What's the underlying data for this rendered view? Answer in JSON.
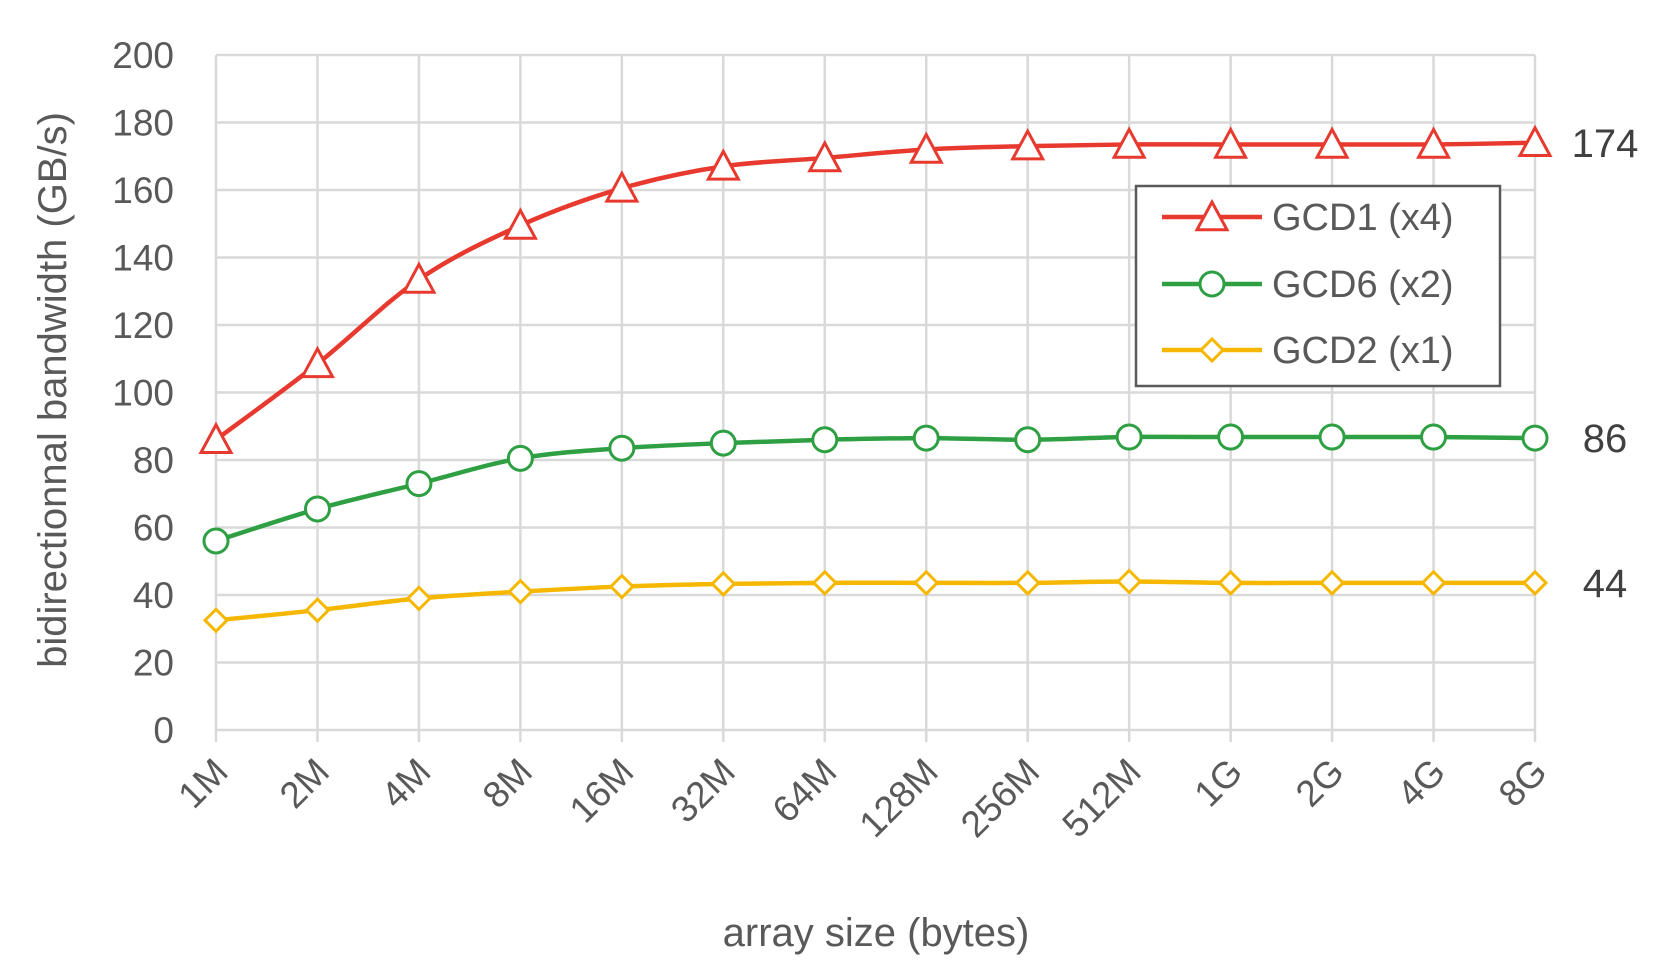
{
  "chart_data": {
    "type": "line",
    "title": "",
    "xlabel": "array size (bytes)",
    "ylabel": "bidirectionnal bandwidth (GB/s)",
    "ylim": [
      0,
      200
    ],
    "yticks": [
      0,
      20,
      40,
      60,
      80,
      100,
      120,
      140,
      160,
      180,
      200
    ],
    "grid": true,
    "legend_position": "top-right",
    "categories": [
      "1M",
      "2M",
      "4M",
      "8M",
      "16M",
      "32M",
      "64M",
      "128M",
      "256M",
      "512M",
      "1G",
      "2G",
      "4G",
      "8G"
    ],
    "series": [
      {
        "name": "GCD1 (x4)",
        "color": "#e8392f",
        "marker": "triangle",
        "end_label": "174",
        "values": [
          86,
          108.5,
          133.5,
          149.5,
          160.5,
          167,
          169.5,
          172,
          173,
          173.5,
          173.5,
          173.5,
          173.5,
          174
        ]
      },
      {
        "name": "GCD6 (x2)",
        "color": "#2ea043",
        "marker": "circle",
        "end_label": "86",
        "values": [
          56,
          65.5,
          73,
          80.5,
          83.5,
          85,
          86,
          86.5,
          86,
          86.8,
          86.8,
          86.8,
          86.8,
          86.5
        ]
      },
      {
        "name": "GCD2 (x1)",
        "color": "#f5b700",
        "marker": "diamond",
        "end_label": "44",
        "values": [
          32.5,
          35.5,
          39,
          41,
          42.5,
          43.3,
          43.6,
          43.6,
          43.6,
          44,
          43.6,
          43.6,
          43.6,
          43.6
        ]
      }
    ]
  }
}
